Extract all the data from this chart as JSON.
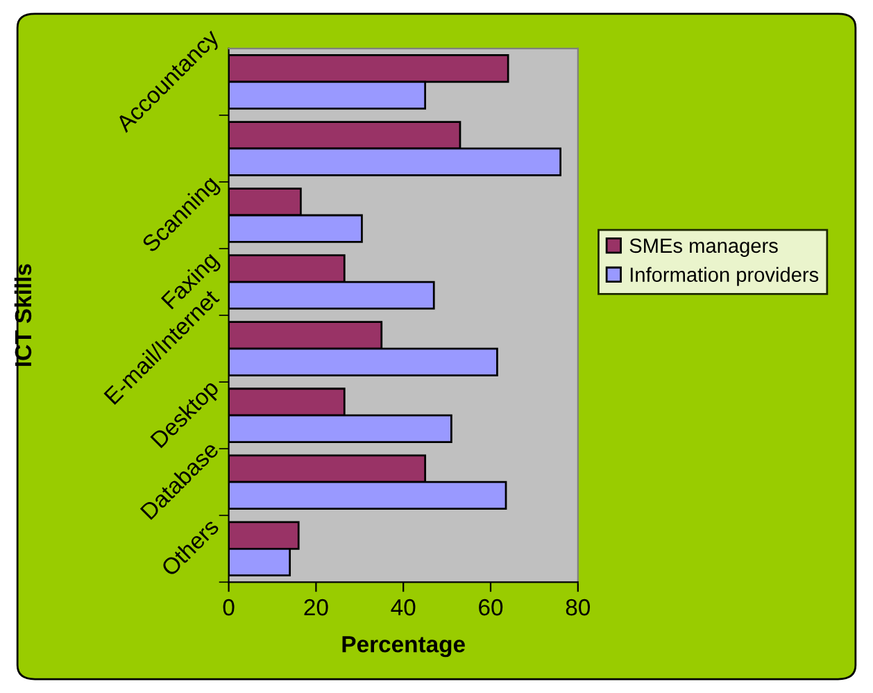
{
  "chart_data": {
    "type": "bar",
    "orientation": "horizontal",
    "xlabel": "Percentage",
    "ylabel": "ICT Skills",
    "categories": [
      "Accountancy",
      null,
      "Scanning",
      "Faxing",
      "E-mail/Internet",
      "Desktop",
      "Database",
      "Others"
    ],
    "series": [
      {
        "name": "SMEs managers",
        "color": "#993366",
        "values": [
          64,
          53,
          16.5,
          26.5,
          35,
          26.5,
          45,
          16
        ]
      },
      {
        "name": "Information providers",
        "color": "#9999ff",
        "values": [
          45,
          76,
          30.5,
          47,
          61.5,
          51,
          63.5,
          14
        ]
      }
    ],
    "xlim": [
      0,
      80
    ],
    "xticks": [
      0,
      20,
      40,
      60,
      80
    ],
    "grid": false,
    "legend": "right"
  }
}
